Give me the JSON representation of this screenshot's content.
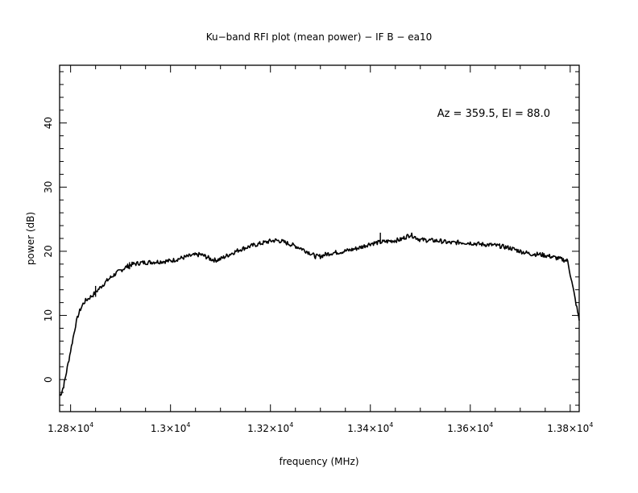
{
  "chart_data": {
    "type": "line",
    "title": "Ku−band RFI plot (mean power) − IF B − ea10",
    "xlabel": "frequency (MHz)",
    "ylabel": "power (dB)",
    "annotation": "Az = 359.5, El = 88.0",
    "xlim": [
      12778,
      13818
    ],
    "ylim": [
      -5.0,
      49.0
    ],
    "grid": false,
    "x_ticks": [
      {
        "value": 12800,
        "label": "1.28×10",
        "exp": "4"
      },
      {
        "value": 13000,
        "label": "1.3×10",
        "exp": "4"
      },
      {
        "value": 13200,
        "label": "1.32×10",
        "exp": "4"
      },
      {
        "value": 13400,
        "label": "1.34×10",
        "exp": "4"
      },
      {
        "value": 13600,
        "label": "1.36×10",
        "exp": "4"
      },
      {
        "value": 13800,
        "label": "1.38×10",
        "exp": "4"
      }
    ],
    "y_ticks": [
      {
        "value": 0,
        "label": "0"
      },
      {
        "value": 10,
        "label": "10"
      },
      {
        "value": 20,
        "label": "20"
      },
      {
        "value": 30,
        "label": "30"
      },
      {
        "value": 40,
        "label": "40"
      }
    ],
    "series": [
      {
        "color": "#000000",
        "x": [
          12778,
          12782,
          12786,
          12790,
          12795,
          12800,
          12805,
          12810,
          12815,
          12820,
          12825,
          12830,
          12835,
          12840,
          12845,
          12850,
          12855,
          12860,
          12870,
          12880,
          12890,
          12900,
          12910,
          12920,
          12940,
          12960,
          12980,
          13000,
          13020,
          13040,
          13060,
          13070,
          13080,
          13090,
          13100,
          13120,
          13140,
          13160,
          13180,
          13200,
          13210,
          13220,
          13240,
          13260,
          13280,
          13290,
          13300,
          13310,
          13320,
          13340,
          13360,
          13380,
          13400,
          13420,
          13440,
          13460,
          13470,
          13480,
          13490,
          13500,
          13520,
          13540,
          13560,
          13580,
          13600,
          13620,
          13640,
          13660,
          13680,
          13700,
          13720,
          13740,
          13760,
          13780,
          13795,
          13800,
          13805,
          13810,
          13815,
          13818
        ],
        "y": [
          -2.5,
          -2.0,
          -1.0,
          0.5,
          2.5,
          4.5,
          6.5,
          8.5,
          10.0,
          11.0,
          11.8,
          12.3,
          12.6,
          12.9,
          13.2,
          13.6,
          14.0,
          14.4,
          15.2,
          15.9,
          16.5,
          17.0,
          17.5,
          17.9,
          18.2,
          18.3,
          18.4,
          18.5,
          18.9,
          19.3,
          19.5,
          19.2,
          18.8,
          18.6,
          18.8,
          19.6,
          20.3,
          20.8,
          21.2,
          21.6,
          21.7,
          21.6,
          21.1,
          20.5,
          19.7,
          19.2,
          19.2,
          19.5,
          19.7,
          19.9,
          20.2,
          20.6,
          21.2,
          21.4,
          21.6,
          21.8,
          22.2,
          22.6,
          22.2,
          21.8,
          21.7,
          21.6,
          21.3,
          21.4,
          21.3,
          21.1,
          21.0,
          20.8,
          20.5,
          20.0,
          19.6,
          19.5,
          19.2,
          18.8,
          18.5,
          16.5,
          14.5,
          12.5,
          10.5,
          9.2
        ]
      }
    ],
    "spikes": [
      {
        "x": 12850,
        "base": 12.9,
        "top": 14.6
      },
      {
        "x": 12918,
        "base": 17.2,
        "top": 18.3
      },
      {
        "x": 13420,
        "base": 21.3,
        "top": 22.9
      }
    ]
  }
}
